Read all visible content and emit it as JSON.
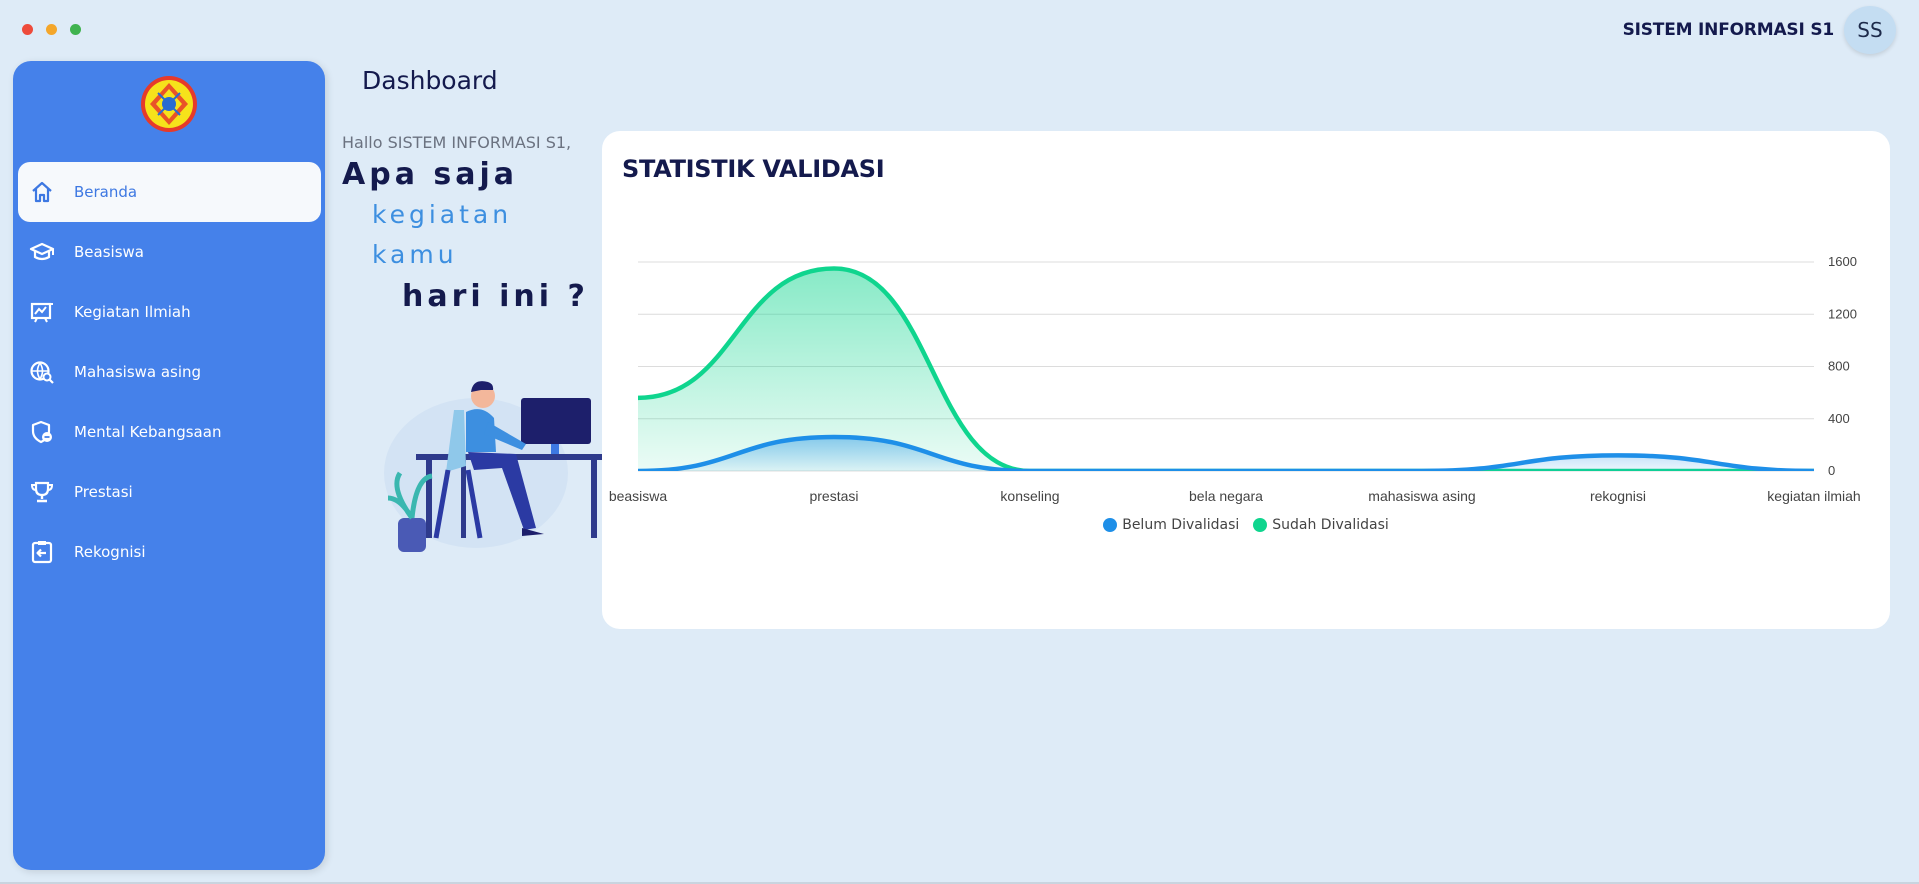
{
  "window": {
    "dots": [
      "#ee4b3b",
      "#f4a62a",
      "#3fb34f"
    ]
  },
  "header": {
    "user_name": "SISTEM INFORMASI S1",
    "avatar_initials": "SS"
  },
  "sidebar": {
    "items": [
      {
        "label": "Beranda",
        "icon": "home-icon",
        "active": true
      },
      {
        "label": "Beasiswa",
        "icon": "graduation-cap-icon",
        "active": false
      },
      {
        "label": "Kegiatan Ilmiah",
        "icon": "science-board-icon",
        "active": false
      },
      {
        "label": "Mahasiswa asing",
        "icon": "globe-search-icon",
        "active": false
      },
      {
        "label": "Mental Kebangsaan",
        "icon": "shield-user-icon",
        "active": false
      },
      {
        "label": "Prestasi",
        "icon": "trophy-icon",
        "active": false
      },
      {
        "label": "Rekognisi",
        "icon": "clipboard-arrow-icon",
        "active": false
      }
    ]
  },
  "main": {
    "title": "Dashboard",
    "greeting": "Hallo SISTEM INFORMASI S1,",
    "tagline": {
      "line1": "Apa saja",
      "line2": "kegiatan",
      "line3": "kamu",
      "line4": "hari ini ?"
    }
  },
  "card": {
    "title": "STATISTIK VALIDASI"
  },
  "chart_data": {
    "type": "area",
    "categories": [
      "beasiswa",
      "prestasi",
      "konseling",
      "bela negara",
      "mahasiswa asing",
      "rekognisi",
      "kegiatan ilmiah"
    ],
    "series": [
      {
        "name": "Belum Divalidasi",
        "color": "#1e8fe8",
        "values": [
          0,
          260,
          0,
          0,
          0,
          120,
          0
        ]
      },
      {
        "name": "Sudah Divalidasi",
        "color": "#0fd58e",
        "values": [
          560,
          1550,
          0,
          0,
          0,
          0,
          0
        ]
      }
    ],
    "y_ticks": [
      0,
      400,
      800,
      1200,
      1600
    ],
    "ylim": [
      0,
      1600
    ],
    "y_axis_position": "right",
    "grid": true,
    "legend": "bottom-center"
  }
}
